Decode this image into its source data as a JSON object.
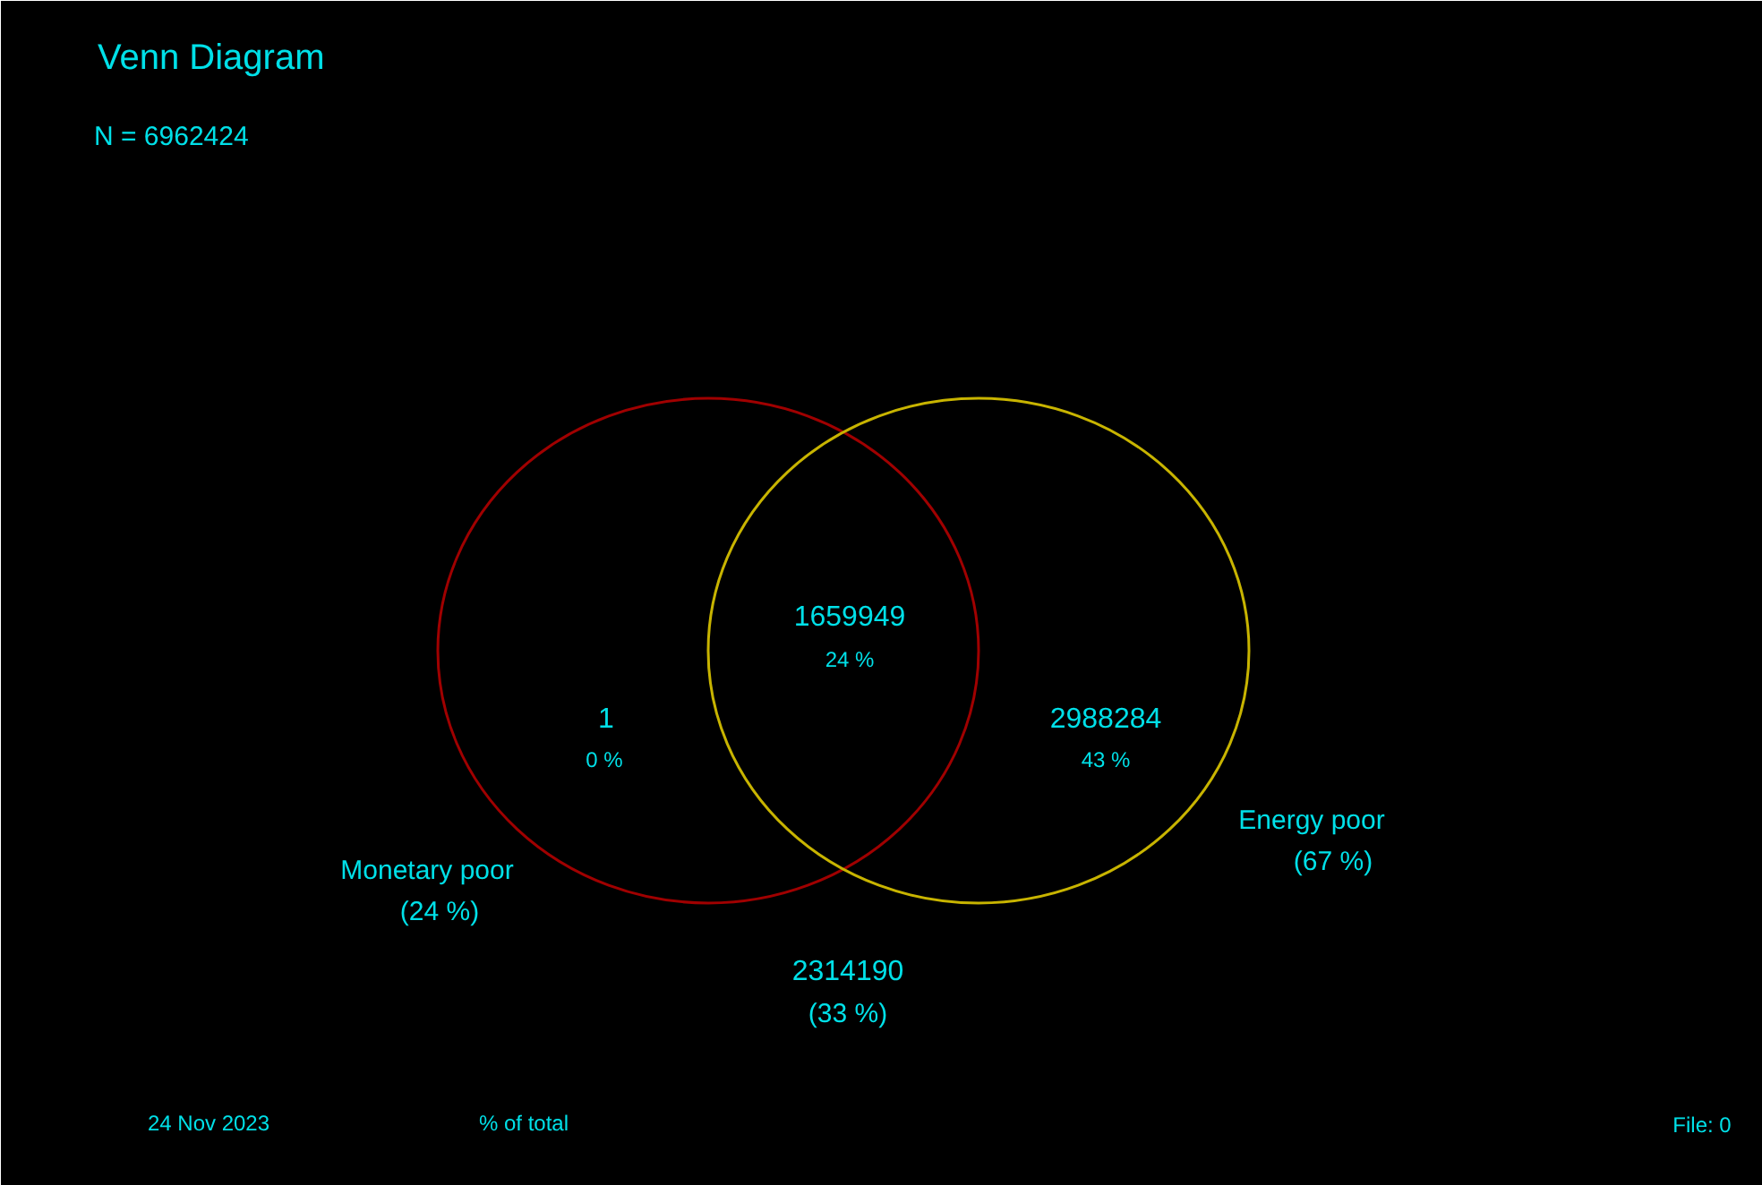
{
  "chart_data": {
    "type": "other",
    "title": "Venn Diagram",
    "subtitle": "N = 6962424",
    "categories": [
      "Monetary poor",
      "Energy poor"
    ],
    "values": [
      24,
      67
    ],
    "value_labels": [
      "(24 %)",
      "(67 %)"
    ],
    "colors": [
      "#a00000",
      "#c8b400"
    ],
    "annotations": [
      "1",
      "0 %",
      "1659949",
      "24 %",
      "2988284",
      "43 %",
      "2314190",
      "(33 %)",
      "24 Nov 2023",
      "% of total",
      "File: 0"
    ]
  }
}
